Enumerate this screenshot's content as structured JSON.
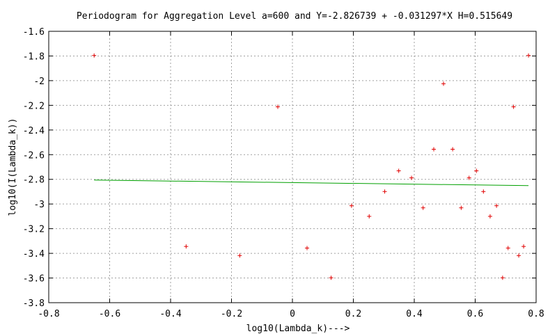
{
  "chart_data": {
    "type": "scatter",
    "title": "Periodogram for Aggregation Level a=600 and Y=-2.826739 + -0.031297*X H=0.515649",
    "xlabel": "log10(Lambda_k)--->",
    "ylabel": "log10(I(Lambda_k))",
    "xlim": [
      -0.8,
      0.8
    ],
    "ylim": [
      -3.8,
      -1.6
    ],
    "xticks": [
      -0.8,
      -0.6,
      -0.4,
      -0.2,
      0,
      0.2,
      0.4,
      0.6,
      0.8
    ],
    "xtick_labels": [
      "-0.8",
      "-0.6",
      "-0.4",
      "-0.2",
      "0",
      "0.2",
      "0.4",
      "0.6",
      "0.8"
    ],
    "yticks": [
      -3.8,
      -3.6,
      -3.4,
      -3.2,
      -3.0,
      -2.8,
      -2.6,
      -2.4,
      -2.2,
      -2.0,
      -1.8,
      -1.6
    ],
    "ytick_labels": [
      "-3.8",
      "-3.6",
      "-3.4",
      "-3.2",
      "-3",
      "-2.8",
      "-2.6",
      "-2.4",
      "-2.2",
      "-2",
      "-1.8",
      "-1.6"
    ],
    "grid": true,
    "series": [
      {
        "type": "scatter",
        "marker": "+",
        "color": "#e00000",
        "points": [
          [
            -0.651,
            -1.796
          ],
          [
            -0.349,
            -3.344
          ],
          [
            -0.173,
            -3.418
          ],
          [
            -0.048,
            -2.212
          ],
          [
            0.048,
            -3.357
          ],
          [
            0.127,
            -3.598
          ],
          [
            0.194,
            -3.014
          ],
          [
            0.252,
            -3.1
          ],
          [
            0.303,
            -2.899
          ],
          [
            0.349,
            -2.731
          ],
          [
            0.391,
            -2.788
          ],
          [
            0.429,
            -3.031
          ],
          [
            0.464,
            -2.556
          ],
          [
            0.496,
            -2.025
          ],
          [
            0.526,
            -2.556
          ],
          [
            0.554,
            -3.031
          ],
          [
            0.58,
            -2.788
          ],
          [
            0.604,
            -2.731
          ],
          [
            0.627,
            -2.899
          ],
          [
            0.649,
            -3.1
          ],
          [
            0.67,
            -3.014
          ],
          [
            0.69,
            -3.598
          ],
          [
            0.708,
            -3.357
          ],
          [
            0.726,
            -2.212
          ],
          [
            0.743,
            -3.418
          ],
          [
            0.759,
            -3.344
          ],
          [
            0.775,
            -1.796
          ]
        ]
      },
      {
        "type": "line",
        "color": "#00a000",
        "points": [
          [
            -0.651,
            -2.806
          ],
          [
            0.775,
            -2.851
          ]
        ]
      }
    ]
  }
}
